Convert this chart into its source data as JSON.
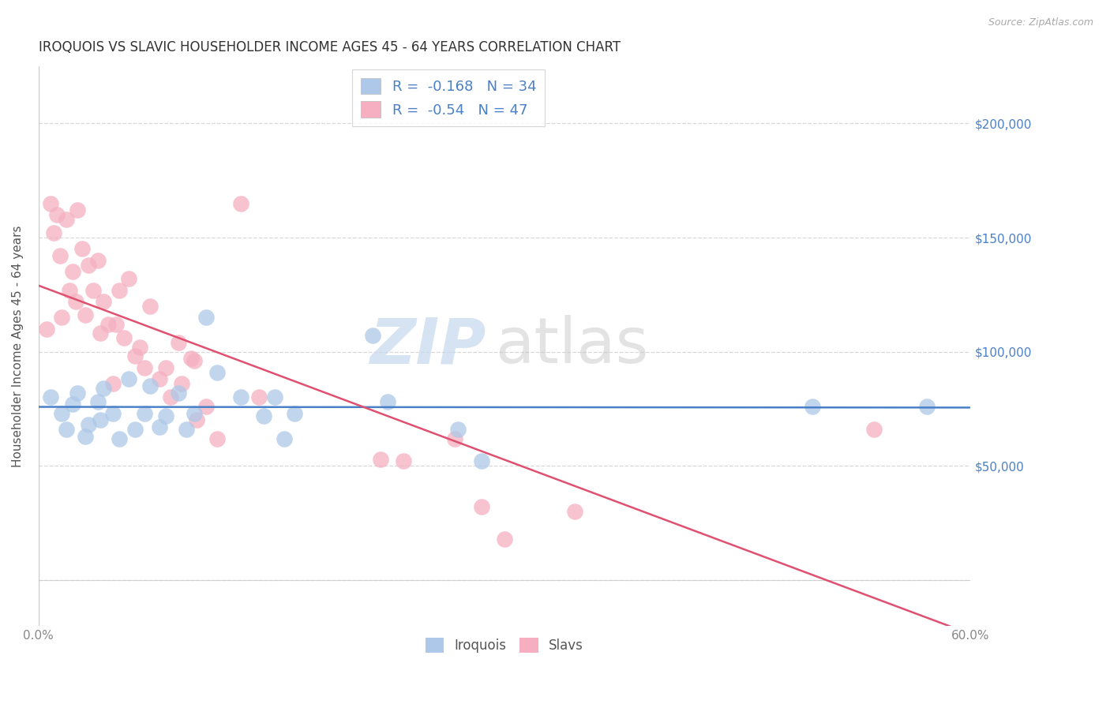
{
  "title": "IROQUOIS VS SLAVIC HOUSEHOLDER INCOME AGES 45 - 64 YEARS CORRELATION CHART",
  "source": "Source: ZipAtlas.com",
  "ylabel": "Householder Income Ages 45 - 64 years",
  "legend_label_1": "Iroquois",
  "legend_label_2": "Slavs",
  "R1": -0.168,
  "N1": 34,
  "R2": -0.54,
  "N2": 47,
  "color1": "#adc8e8",
  "color2": "#f5afc0",
  "line_color1": "#4a80c8",
  "line_color2": "#e05070",
  "xlim_min": 0.0,
  "xlim_max": 0.6,
  "ylim_min": -20000,
  "ylim_max": 225000,
  "yticks": [
    0,
    50000,
    100000,
    150000,
    200000
  ],
  "ytick_labels": [
    "",
    "$50,000",
    "$100,000",
    "$150,000",
    "$200,000"
  ],
  "background": "#ffffff",
  "grid_color": "#d8d8d8",
  "iroquois_x": [
    0.008,
    0.015,
    0.018,
    0.022,
    0.025,
    0.03,
    0.032,
    0.038,
    0.04,
    0.042,
    0.048,
    0.052,
    0.058,
    0.062,
    0.068,
    0.072,
    0.078,
    0.082,
    0.09,
    0.095,
    0.1,
    0.108,
    0.115,
    0.13,
    0.145,
    0.152,
    0.158,
    0.165,
    0.215,
    0.225,
    0.27,
    0.285,
    0.498,
    0.572
  ],
  "iroquois_y": [
    80000,
    73000,
    66000,
    77000,
    82000,
    63000,
    68000,
    78000,
    70000,
    84000,
    73000,
    62000,
    88000,
    66000,
    73000,
    85000,
    67000,
    72000,
    82000,
    66000,
    73000,
    115000,
    91000,
    80000,
    72000,
    80000,
    62000,
    73000,
    107000,
    78000,
    66000,
    52000,
    76000,
    76000
  ],
  "slavs_x": [
    0.005,
    0.008,
    0.01,
    0.012,
    0.014,
    0.015,
    0.018,
    0.02,
    0.022,
    0.024,
    0.025,
    0.028,
    0.03,
    0.032,
    0.035,
    0.038,
    0.04,
    0.042,
    0.045,
    0.048,
    0.05,
    0.052,
    0.055,
    0.058,
    0.062,
    0.065,
    0.068,
    0.072,
    0.078,
    0.082,
    0.085,
    0.09,
    0.092,
    0.098,
    0.1,
    0.102,
    0.108,
    0.115,
    0.13,
    0.142,
    0.22,
    0.235,
    0.268,
    0.285,
    0.3,
    0.345,
    0.538
  ],
  "slavs_y": [
    110000,
    165000,
    152000,
    160000,
    142000,
    115000,
    158000,
    127000,
    135000,
    122000,
    162000,
    145000,
    116000,
    138000,
    127000,
    140000,
    108000,
    122000,
    112000,
    86000,
    112000,
    127000,
    106000,
    132000,
    98000,
    102000,
    93000,
    120000,
    88000,
    93000,
    80000,
    104000,
    86000,
    97000,
    96000,
    70000,
    76000,
    62000,
    165000,
    80000,
    53000,
    52000,
    62000,
    32000,
    18000,
    30000,
    66000
  ]
}
